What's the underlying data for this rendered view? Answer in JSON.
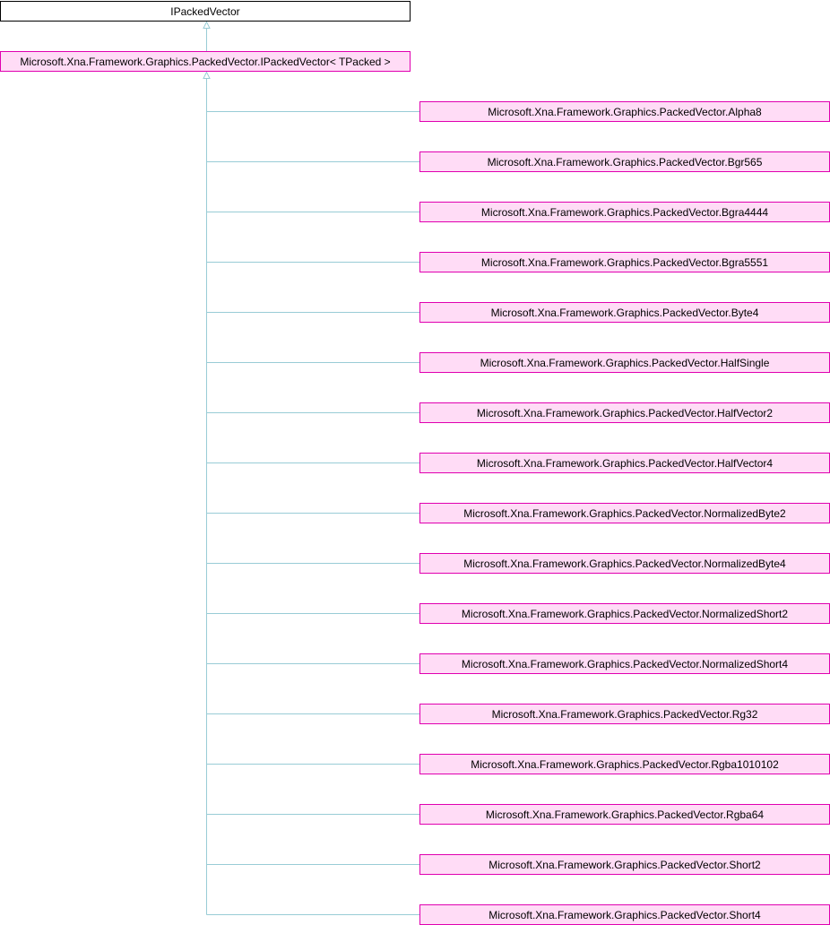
{
  "colors": {
    "node_fill": "#ffdcf6",
    "node_border": "#e000b0",
    "root_fill": "#ffffff",
    "root_border": "#000000",
    "edge": "#99ccd6"
  },
  "diagram": {
    "root": {
      "label": "IPackedVector"
    },
    "generic": {
      "label": "Microsoft.Xna.Framework.Graphics.PackedVector.IPackedVector< TPacked >"
    },
    "children": [
      {
        "label": "Microsoft.Xna.Framework.Graphics.PackedVector.Alpha8"
      },
      {
        "label": "Microsoft.Xna.Framework.Graphics.PackedVector.Bgr565"
      },
      {
        "label": "Microsoft.Xna.Framework.Graphics.PackedVector.Bgra4444"
      },
      {
        "label": "Microsoft.Xna.Framework.Graphics.PackedVector.Bgra5551"
      },
      {
        "label": "Microsoft.Xna.Framework.Graphics.PackedVector.Byte4"
      },
      {
        "label": "Microsoft.Xna.Framework.Graphics.PackedVector.HalfSingle"
      },
      {
        "label": "Microsoft.Xna.Framework.Graphics.PackedVector.HalfVector2"
      },
      {
        "label": "Microsoft.Xna.Framework.Graphics.PackedVector.HalfVector4"
      },
      {
        "label": "Microsoft.Xna.Framework.Graphics.PackedVector.NormalizedByte2"
      },
      {
        "label": "Microsoft.Xna.Framework.Graphics.PackedVector.NormalizedByte4"
      },
      {
        "label": "Microsoft.Xna.Framework.Graphics.PackedVector.NormalizedShort2"
      },
      {
        "label": "Microsoft.Xna.Framework.Graphics.PackedVector.NormalizedShort4"
      },
      {
        "label": "Microsoft.Xna.Framework.Graphics.PackedVector.Rg32"
      },
      {
        "label": "Microsoft.Xna.Framework.Graphics.PackedVector.Rgba1010102"
      },
      {
        "label": "Microsoft.Xna.Framework.Graphics.PackedVector.Rgba64"
      },
      {
        "label": "Microsoft.Xna.Framework.Graphics.PackedVector.Short2"
      },
      {
        "label": "Microsoft.Xna.Framework.Graphics.PackedVector.Short4"
      }
    ]
  }
}
